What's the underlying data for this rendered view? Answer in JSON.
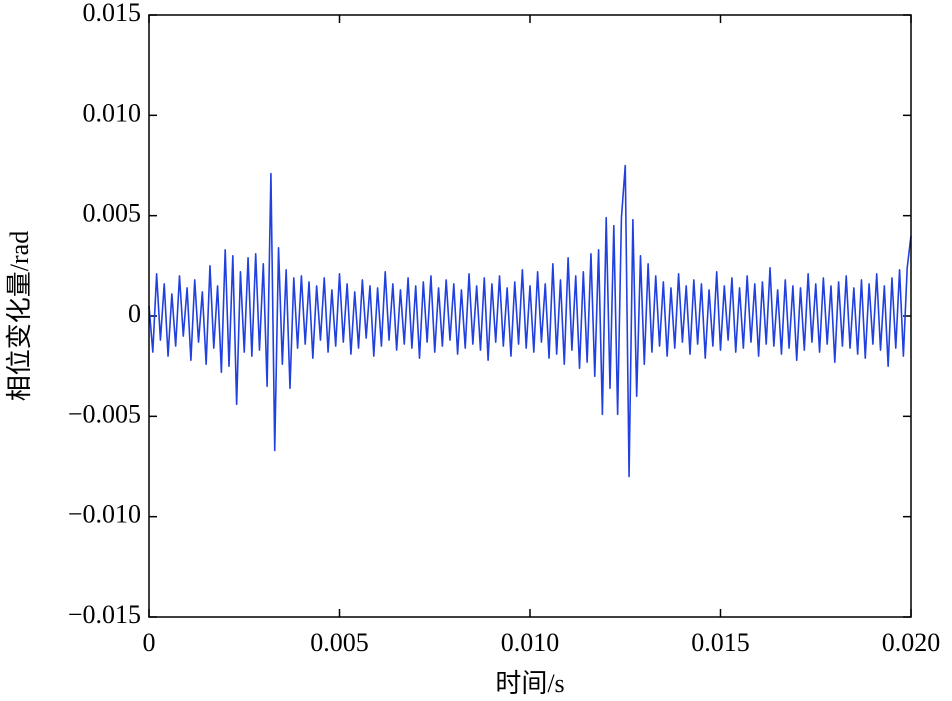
{
  "chart_data": {
    "type": "line",
    "x_label": "时间/s",
    "y_label": "相位变化量/rad",
    "xlim": [
      0,
      0.02
    ],
    "ylim": [
      -0.015,
      0.015
    ],
    "xticks": [
      0,
      0.005,
      {
        "value": 0.01,
        "label": "0.010"
      },
      0.015,
      {
        "value": 0.02,
        "label": "0.020"
      }
    ],
    "yticks": [
      {
        "value": -0.015,
        "label": "−0.015"
      },
      {
        "value": -0.01,
        "label": "−0.010"
      },
      {
        "value": -0.005,
        "label": "−0.005"
      },
      0,
      0.005,
      {
        "value": 0.01,
        "label": "0.010"
      },
      0.015
    ],
    "x": [
      0,
      0.0001,
      0.0002,
      0.0003,
      0.0004,
      0.0005,
      0.0006,
      0.0007,
      0.0008,
      0.0009,
      0.001,
      0.0011,
      0.0012,
      0.0013,
      0.0014,
      0.0015,
      0.0016,
      0.0017,
      0.0018,
      0.0019,
      0.002,
      0.0021,
      0.0022,
      0.0023,
      0.0024,
      0.0025,
      0.0026,
      0.0027,
      0.0028,
      0.0029,
      0.003,
      0.0031,
      0.0032,
      0.0033,
      0.0034,
      0.0035,
      0.0036,
      0.0037,
      0.0038,
      0.0039,
      0.004,
      0.0041,
      0.0042,
      0.0043,
      0.0044,
      0.0045,
      0.0046,
      0.0047,
      0.0048,
      0.0049,
      0.005,
      0.0051,
      0.0052,
      0.0053,
      0.0054,
      0.0055,
      0.0056,
      0.0057,
      0.0058,
      0.0059,
      0.006,
      0.0061,
      0.0062,
      0.0063,
      0.0064,
      0.0065,
      0.0066,
      0.0067,
      0.0068,
      0.0069,
      0.007,
      0.0071,
      0.0072,
      0.0073,
      0.0074,
      0.0075,
      0.0076,
      0.0077,
      0.0078,
      0.0079,
      0.008,
      0.0081,
      0.0082,
      0.0083,
      0.0084,
      0.0085,
      0.0086,
      0.0087,
      0.0088,
      0.0089,
      0.009,
      0.0091,
      0.0092,
      0.0093,
      0.0094,
      0.0095,
      0.0096,
      0.0097,
      0.0098,
      0.0099,
      0.01,
      0.0101,
      0.0102,
      0.0103,
      0.0104,
      0.0105,
      0.0106,
      0.0107,
      0.0108,
      0.0109,
      0.011,
      0.0111,
      0.0112,
      0.0113,
      0.0114,
      0.0115,
      0.0116,
      0.0117,
      0.0118,
      0.0119,
      0.012,
      0.0121,
      0.0122,
      0.0123,
      0.0124,
      0.0125,
      0.0126,
      0.0127,
      0.0128,
      0.0129,
      0.013,
      0.0131,
      0.0132,
      0.0133,
      0.0134,
      0.0135,
      0.0136,
      0.0137,
      0.0138,
      0.0139,
      0.014,
      0.0141,
      0.0142,
      0.0143,
      0.0144,
      0.0145,
      0.0146,
      0.0147,
      0.0148,
      0.0149,
      0.015,
      0.0151,
      0.0152,
      0.0153,
      0.0154,
      0.0155,
      0.0156,
      0.0157,
      0.0158,
      0.0159,
      0.016,
      0.0161,
      0.0162,
      0.0163,
      0.0164,
      0.0165,
      0.0166,
      0.0167,
      0.0168,
      0.0169,
      0.017,
      0.0171,
      0.0172,
      0.0173,
      0.0174,
      0.0175,
      0.0176,
      0.0177,
      0.0178,
      0.0179,
      0.018,
      0.0181,
      0.0182,
      0.0183,
      0.0184,
      0.0185,
      0.0186,
      0.0187,
      0.0188,
      0.0189,
      0.019,
      0.0191,
      0.0192,
      0.0193,
      0.0194,
      0.0195,
      0.0196,
      0.0197,
      0.0198,
      0.0199,
      0.02
    ],
    "series": [
      {
        "color": "#2140e0",
        "values": [
          0.0005,
          -0.0018,
          0.0021,
          -0.0012,
          0.0016,
          -0.002,
          0.0011,
          -0.0015,
          0.002,
          -0.001,
          0.0014,
          -0.0022,
          0.0018,
          -0.0013,
          0.0012,
          -0.0024,
          0.0025,
          -0.0016,
          0.0015,
          -0.0028,
          0.0033,
          -0.0025,
          0.003,
          -0.0044,
          0.0022,
          -0.0018,
          0.0029,
          -0.002,
          0.0031,
          -0.0017,
          0.0026,
          -0.0035,
          0.0071,
          -0.0067,
          0.0034,
          -0.0024,
          0.0023,
          -0.0036,
          0.0019,
          -0.0016,
          0.002,
          -0.0014,
          0.0017,
          -0.0021,
          0.0015,
          -0.0012,
          0.0019,
          -0.0018,
          0.0013,
          -0.0015,
          0.0021,
          -0.0013,
          0.0016,
          -0.0019,
          0.0012,
          -0.0016,
          0.0018,
          -0.0011,
          0.0015,
          -0.002,
          0.0014,
          -0.0015,
          0.0022,
          -0.0012,
          0.0016,
          -0.0017,
          0.0013,
          -0.0014,
          0.0019,
          -0.0016,
          0.0015,
          -0.0021,
          0.0017,
          -0.0013,
          0.002,
          -0.0018,
          0.0014,
          -0.0015,
          0.0018,
          -0.0012,
          0.0016,
          -0.0019,
          0.0013,
          -0.0016,
          0.0021,
          -0.0014,
          0.0015,
          -0.0017,
          0.0019,
          -0.0022,
          0.0016,
          -0.0013,
          0.002,
          -0.0015,
          0.0014,
          -0.002,
          0.0017,
          -0.0014,
          0.0023,
          -0.0016,
          0.0015,
          -0.0018,
          0.0022,
          -0.0013,
          0.0016,
          -0.0021,
          0.0026,
          -0.0019,
          0.0018,
          -0.0024,
          0.0029,
          -0.0017,
          0.002,
          -0.0026,
          0.0022,
          -0.0023,
          0.0031,
          -0.003,
          0.0033,
          -0.0049,
          0.0049,
          -0.0036,
          0.0045,
          -0.0049,
          0.0049,
          0.0075,
          -0.008,
          0.0048,
          -0.004,
          0.003,
          -0.0024,
          0.0026,
          -0.0018,
          0.002,
          -0.0015,
          0.0017,
          -0.002,
          0.0014,
          -0.0016,
          0.0021,
          -0.0013,
          0.0015,
          -0.0019,
          0.0018,
          -0.0014,
          0.0016,
          -0.0021,
          0.0013,
          -0.0015,
          0.0022,
          -0.0017,
          0.0015,
          -0.0012,
          0.0019,
          -0.0018,
          0.0014,
          -0.0016,
          0.002,
          -0.0013,
          0.0016,
          -0.002,
          0.0017,
          -0.0014,
          0.0024,
          -0.0015,
          0.0013,
          -0.0019,
          0.0018,
          -0.0016,
          0.0015,
          -0.0022,
          0.0014,
          -0.0017,
          0.0021,
          -0.0013,
          0.0016,
          -0.0018,
          0.0019,
          -0.0014,
          0.0015,
          -0.0023,
          0.0017,
          -0.0015,
          0.002,
          -0.0016,
          0.0014,
          -0.0019,
          0.0018,
          -0.0021,
          0.0016,
          -0.0014,
          0.0021,
          -0.0017,
          0.0015,
          -0.0025,
          0.0019,
          -0.0016,
          0.0023,
          -0.002,
          0.0024,
          0.004
        ]
      }
    ]
  }
}
